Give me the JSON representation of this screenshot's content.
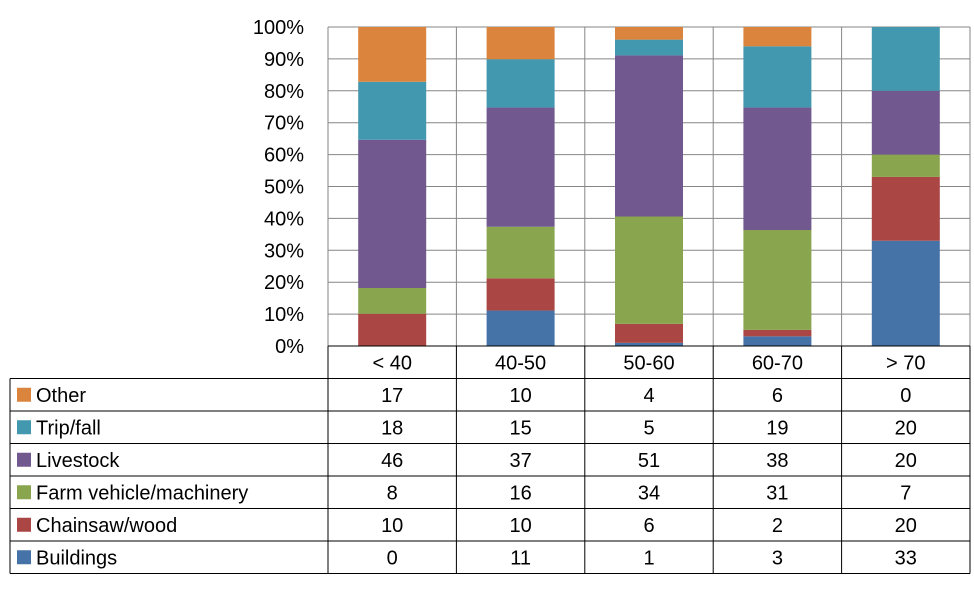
{
  "chart_data": {
    "type": "bar",
    "stacked": true,
    "percent_stacked": true,
    "categories": [
      "< 40",
      "40-50",
      "50-60",
      "60-70",
      "> 70"
    ],
    "series": [
      {
        "name": "Buildings",
        "color": "#4572A7",
        "values": [
          0,
          11,
          1,
          3,
          33
        ]
      },
      {
        "name": "Chainsaw/wood",
        "color": "#AA4643",
        "values": [
          10,
          10,
          6,
          2,
          20
        ]
      },
      {
        "name": "Farm vehicle/machinery",
        "color": "#89A54E",
        "values": [
          8,
          16,
          34,
          31,
          7
        ]
      },
      {
        "name": "Livestock",
        "color": "#71588F",
        "values": [
          46,
          37,
          51,
          38,
          20
        ]
      },
      {
        "name": "Trip/fall",
        "color": "#4198AF",
        "values": [
          18,
          15,
          5,
          19,
          20
        ]
      },
      {
        "name": "Other",
        "color": "#DB843D",
        "values": [
          17,
          10,
          4,
          6,
          0
        ]
      }
    ],
    "ylim": [
      0,
      100
    ],
    "y_ticks": [
      "0%",
      "10%",
      "20%",
      "30%",
      "40%",
      "50%",
      "60%",
      "70%",
      "80%",
      "90%",
      "100%"
    ],
    "grid": true,
    "legend": "data-table-rows"
  }
}
